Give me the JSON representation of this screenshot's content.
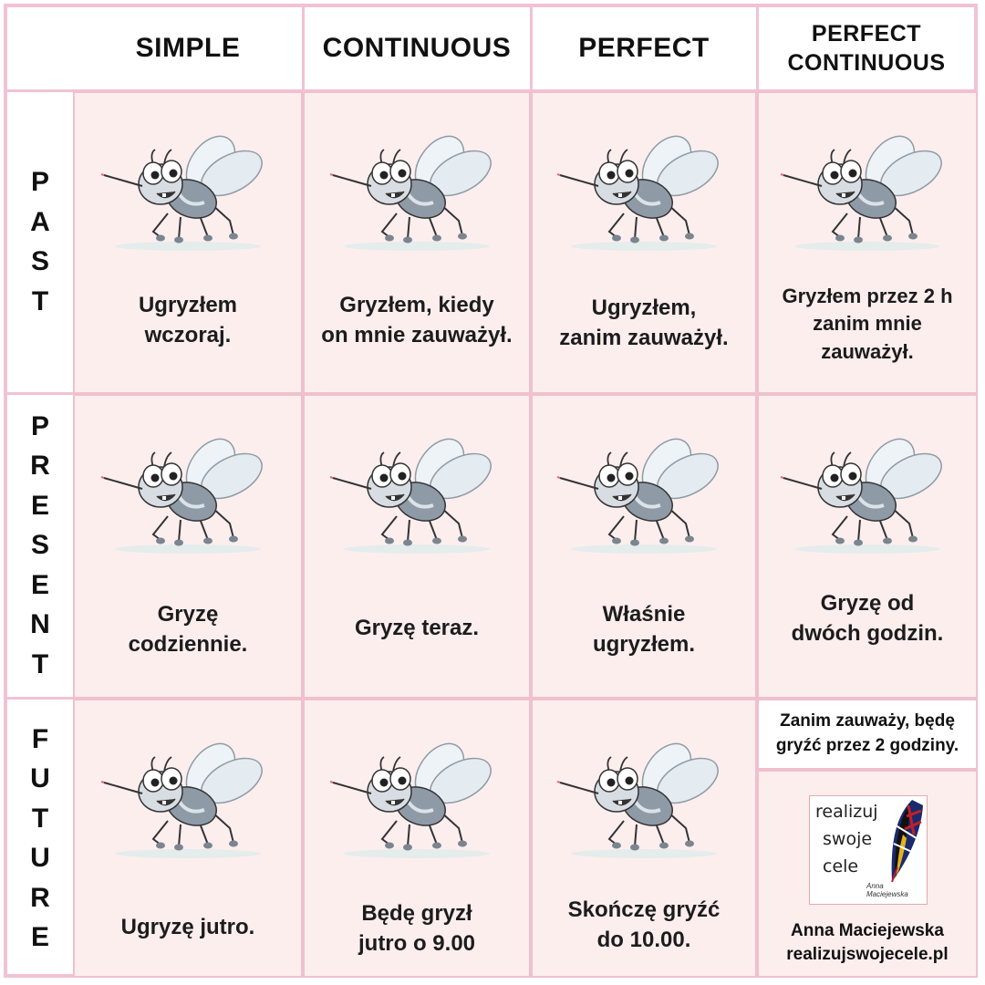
{
  "headers": [
    "SIMPLE",
    "CONTINUOUS",
    "PERFECT",
    "PERFECT\nCONTINUOUS"
  ],
  "rows": [
    {
      "label": "PAST",
      "cells": [
        "Ugryzłem\nwczoraj.",
        "Gryzłem, kiedy\non mnie zauważył.",
        "Ugryzłem,\nzanim zauważył.",
        "Gryzłem przez 2 h\nzanim mnie\nzauważył."
      ]
    },
    {
      "label": "PRESENT",
      "cells": [
        "Gryzę\ncodziennie.",
        "Gryzę teraz.",
        "Właśnie\nugryzłem.",
        "Gryzę od\ndwóch godzin."
      ]
    },
    {
      "label": "FUTURE",
      "cells": [
        "Ugryzę jutro.",
        "Będę gryzł\njutro o 9.00",
        "Skończę gryźć\ndo 10.00.",
        "Zanim zauważy, będę\ngryźć przez 2 godziny."
      ]
    }
  ],
  "logo": {
    "lines": [
      "realizuj",
      "swoje",
      "cele"
    ],
    "signature": "Anna Maciejewska",
    "author": "Anna Maciejewska",
    "website": "realizujswojecele.pl"
  },
  "colors": {
    "grid": "#f2c2d4",
    "cell_bg": "#fdeeee",
    "text": "#111111",
    "mosquito_body": "#8e9aa6"
  },
  "icons": [
    "mosquito-icon",
    "feather-flag-icon"
  ]
}
